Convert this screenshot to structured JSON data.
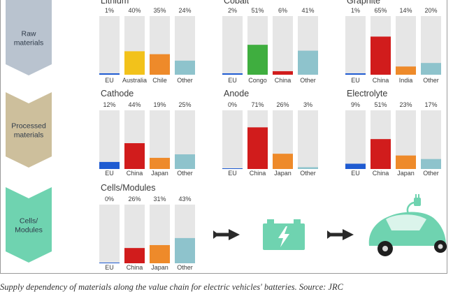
{
  "rows": [
    {
      "label": [
        "Raw",
        "materials"
      ],
      "color": "#b9c3cf"
    },
    {
      "label": [
        "Processed",
        "materials"
      ],
      "color": "#cdbf9c"
    },
    {
      "label": [
        "Cells/",
        "Modules"
      ],
      "color": "#6fd3b0"
    }
  ],
  "chart_data": [
    {
      "type": "bar",
      "row": 0,
      "title": "Lithium",
      "categories": [
        "EU",
        "Australia",
        "Chile",
        "Other"
      ],
      "values": [
        1,
        40,
        35,
        24
      ],
      "value_labels": [
        "1%",
        "40%",
        "35%",
        "24%"
      ],
      "colors": [
        "#1f5bd1",
        "#f2c21b",
        "#ee8a2a",
        "#8ec3cc"
      ],
      "ylim": [
        0,
        100
      ]
    },
    {
      "type": "bar",
      "row": 0,
      "title": "Cobalt",
      "categories": [
        "EU",
        "Congo",
        "China",
        "Other"
      ],
      "values": [
        2,
        51,
        6,
        41
      ],
      "value_labels": [
        "2%",
        "51%",
        "6%",
        "41%"
      ],
      "colors": [
        "#1f5bd1",
        "#3fae3f",
        "#d11c1c",
        "#8ec3cc"
      ],
      "ylim": [
        0,
        100
      ]
    },
    {
      "type": "bar",
      "row": 0,
      "title": "Graphite",
      "categories": [
        "EU",
        "China",
        "India",
        "Other"
      ],
      "values": [
        1,
        65,
        14,
        20
      ],
      "value_labels": [
        "1%",
        "65%",
        "14%",
        "20%"
      ],
      "colors": [
        "#1f5bd1",
        "#d11c1c",
        "#ee8a2a",
        "#8ec3cc"
      ],
      "ylim": [
        0,
        100
      ]
    },
    {
      "type": "bar",
      "row": 1,
      "title": "Cathode",
      "categories": [
        "EU",
        "China",
        "Japan",
        "Other"
      ],
      "values": [
        12,
        44,
        19,
        25
      ],
      "value_labels": [
        "12%",
        "44%",
        "19%",
        "25%"
      ],
      "colors": [
        "#1f5bd1",
        "#d11c1c",
        "#ee8a2a",
        "#8ec3cc"
      ],
      "ylim": [
        0,
        100
      ]
    },
    {
      "type": "bar",
      "row": 1,
      "title": "Anode",
      "categories": [
        "EU",
        "China",
        "Japan",
        "Other"
      ],
      "values": [
        0,
        71,
        26,
        3
      ],
      "value_labels": [
        "0%",
        "71%",
        "26%",
        "3%"
      ],
      "colors": [
        "#1f5bd1",
        "#d11c1c",
        "#ee8a2a",
        "#8ec3cc"
      ],
      "ylim": [
        0,
        100
      ]
    },
    {
      "type": "bar",
      "row": 1,
      "title": "Electrolyte",
      "categories": [
        "EU",
        "China",
        "Japan",
        "Other"
      ],
      "values": [
        9,
        51,
        23,
        17
      ],
      "value_labels": [
        "9%",
        "51%",
        "23%",
        "17%"
      ],
      "colors": [
        "#1f5bd1",
        "#d11c1c",
        "#ee8a2a",
        "#8ec3cc"
      ],
      "ylim": [
        0,
        100
      ]
    },
    {
      "type": "bar",
      "row": 2,
      "title": "Cells/Modules",
      "categories": [
        "EU",
        "China",
        "Japan",
        "Other"
      ],
      "values": [
        0,
        26,
        31,
        43
      ],
      "value_labels": [
        "0%",
        "26%",
        "31%",
        "43%"
      ],
      "colors": [
        "#1f5bd1",
        "#d11c1c",
        "#ee8a2a",
        "#8ec3cc"
      ],
      "ylim": [
        0,
        100
      ]
    }
  ],
  "colors": {
    "track": "#e6e6e6",
    "accent": "#6fd3b0",
    "arrow": "#2a2a2a"
  },
  "icons": [
    "arrow-right-icon",
    "battery-icon",
    "electric-car-icon"
  ],
  "caption": "Supply dependency of materials along the value chain for electric vehicles' batteries.  Source: JRC"
}
